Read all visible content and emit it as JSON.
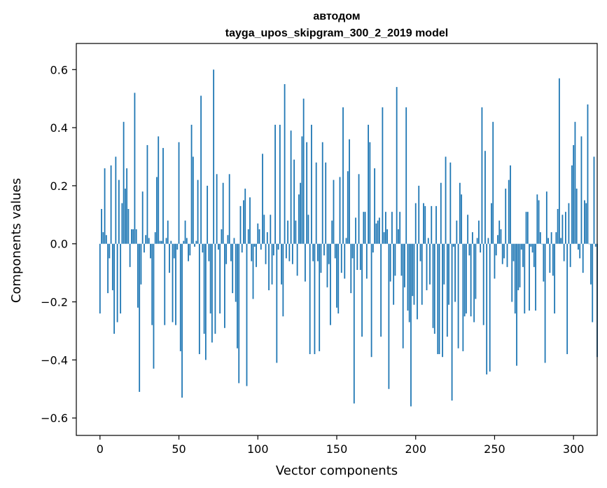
{
  "chart_data": {
    "type": "bar",
    "title": "автодом",
    "subtitle": "tayga_upos_skipgram_300_2_2019 model",
    "xlabel": "Vector components",
    "ylabel": "Components values",
    "xlim": [
      -15,
      315
    ],
    "ylim": [
      -0.66,
      0.69
    ],
    "xticks": [
      0,
      50,
      100,
      150,
      200,
      250,
      300
    ],
    "yticks": [
      -0.6,
      -0.4,
      -0.2,
      0.0,
      0.2,
      0.4,
      0.6
    ],
    "xtick_labels": [
      "0",
      "50",
      "100",
      "150",
      "200",
      "250",
      "300"
    ],
    "ytick_labels": [
      "−0.6",
      "−0.4",
      "−0.2",
      "0.0",
      "0.2",
      "0.4",
      "0.6"
    ],
    "grid": false,
    "bar_color": "#1f77b4",
    "values": [
      -0.24,
      0.12,
      0.04,
      0.26,
      0.03,
      -0.17,
      -0.05,
      0.27,
      -0.16,
      -0.31,
      0.3,
      -0.27,
      0.22,
      -0.24,
      0.14,
      0.42,
      0.19,
      0.26,
      0.12,
      -0.08,
      0.05,
      0.05,
      0.52,
      0.05,
      -0.22,
      -0.51,
      -0.14,
      0.18,
      -0.03,
      0.03,
      0.34,
      0.02,
      -0.05,
      -0.28,
      -0.43,
      0.04,
      0.23,
      0.37,
      0.01,
      0.01,
      0.33,
      -0.28,
      0.02,
      0.08,
      -0.1,
      0.01,
      -0.27,
      -0.05,
      -0.28,
      -0.02,
      0.35,
      -0.37,
      -0.53,
      0.01,
      0.08,
      0.02,
      -0.06,
      -0.04,
      0.41,
      0.3,
      -0.01,
      0.01,
      0.22,
      -0.38,
      0.51,
      -0.03,
      -0.31,
      -0.4,
      0.2,
      -0.06,
      -0.24,
      -0.34,
      0.6,
      -0.31,
      0.24,
      -0.02,
      -0.24,
      0.05,
      0.21,
      -0.29,
      -0.07,
      0.03,
      0.24,
      -0.06,
      -0.17,
      0.02,
      -0.2,
      -0.36,
      -0.48,
      0.13,
      -0.03,
      0.15,
      0.19,
      -0.49,
      0.05,
      0.16,
      -0.06,
      -0.19,
      -0.01,
      -0.08,
      0.07,
      0.05,
      -0.02,
      0.31,
      0.1,
      -0.07,
      0.04,
      -0.16,
      0.1,
      -0.14,
      -0.04,
      0.41,
      -0.41,
      -0.02,
      0.41,
      -0.14,
      -0.25,
      0.55,
      -0.05,
      0.08,
      -0.06,
      0.39,
      -0.07,
      0.29,
      0.08,
      -0.11,
      0.17,
      0.21,
      0.37,
      0.5,
      -0.13,
      0.35,
      0.1,
      -0.38,
      0.41,
      -0.06,
      -0.38,
      0.28,
      -0.06,
      -0.37,
      -0.1,
      0.35,
      -0.04,
      0.28,
      -0.15,
      -0.07,
      -0.28,
      0.08,
      0.22,
      -0.05,
      -0.22,
      -0.24,
      0.23,
      -0.1,
      0.47,
      -0.12,
      0.02,
      0.25,
      0.36,
      -0.17,
      -0.05,
      -0.55,
      0.09,
      -0.09,
      0.24,
      -0.09,
      -0.32,
      0.11,
      0.11,
      -0.12,
      0.41,
      0.35,
      -0.39,
      -0.03,
      0.26,
      0.07,
      0.08,
      0.09,
      -0.32,
      0.47,
      0.04,
      0.11,
      0.05,
      -0.5,
      -0.13,
      0.11,
      -0.21,
      -0.11,
      0.54,
      0.05,
      0.11,
      -0.11,
      -0.36,
      -0.15,
      0.47,
      -0.23,
      -0.27,
      -0.56,
      -0.18,
      -0.21,
      0.14,
      -0.26,
      0.2,
      -0.06,
      -0.21,
      0.14,
      0.13,
      -0.16,
      0.02,
      -0.14,
      0.13,
      -0.29,
      -0.31,
      0.13,
      -0.38,
      -0.38,
      0.21,
      -0.39,
      -0.14,
      0.3,
      -0.32,
      -0.21,
      0.28,
      -0.54,
      -0.01,
      -0.2,
      0.08,
      -0.36,
      0.21,
      0.17,
      -0.37,
      -0.25,
      -0.24,
      0.1,
      -0.04,
      -0.25,
      0.04,
      -0.27,
      -0.19,
      0.02,
      0.08,
      -0.03,
      0.47,
      -0.28,
      0.32,
      -0.45,
      0.02,
      -0.44,
      0.14,
      0.42,
      -0.12,
      -0.04,
      0.03,
      0.08,
      0.05,
      -0.07,
      -0.05,
      0.19,
      -0.08,
      0.22,
      0.27,
      -0.2,
      -0.06,
      -0.24,
      -0.42,
      -0.16,
      -0.15,
      -0.02,
      -0.08,
      -0.24,
      0.11,
      0.11,
      -0.23,
      -0.01,
      -0.03,
      -0.08,
      -0.23,
      0.17,
      0.15,
      0.04,
      0.0,
      -0.13,
      -0.41,
      0.18,
      0.02,
      -0.1,
      0.04,
      -0.11,
      -0.24,
      0.04,
      0.12,
      0.57,
      0.02,
      0.1,
      -0.06,
      0.11,
      -0.38,
      0.14,
      -0.08,
      0.27,
      0.34,
      0.42,
      0.19,
      -0.02,
      -0.05,
      0.37,
      -0.1,
      0.15,
      0.14,
      0.48,
      0.0,
      -0.14,
      -0.27,
      0.3,
      -0.01,
      -0.39
    ],
    "value_estimation_note": null
  }
}
